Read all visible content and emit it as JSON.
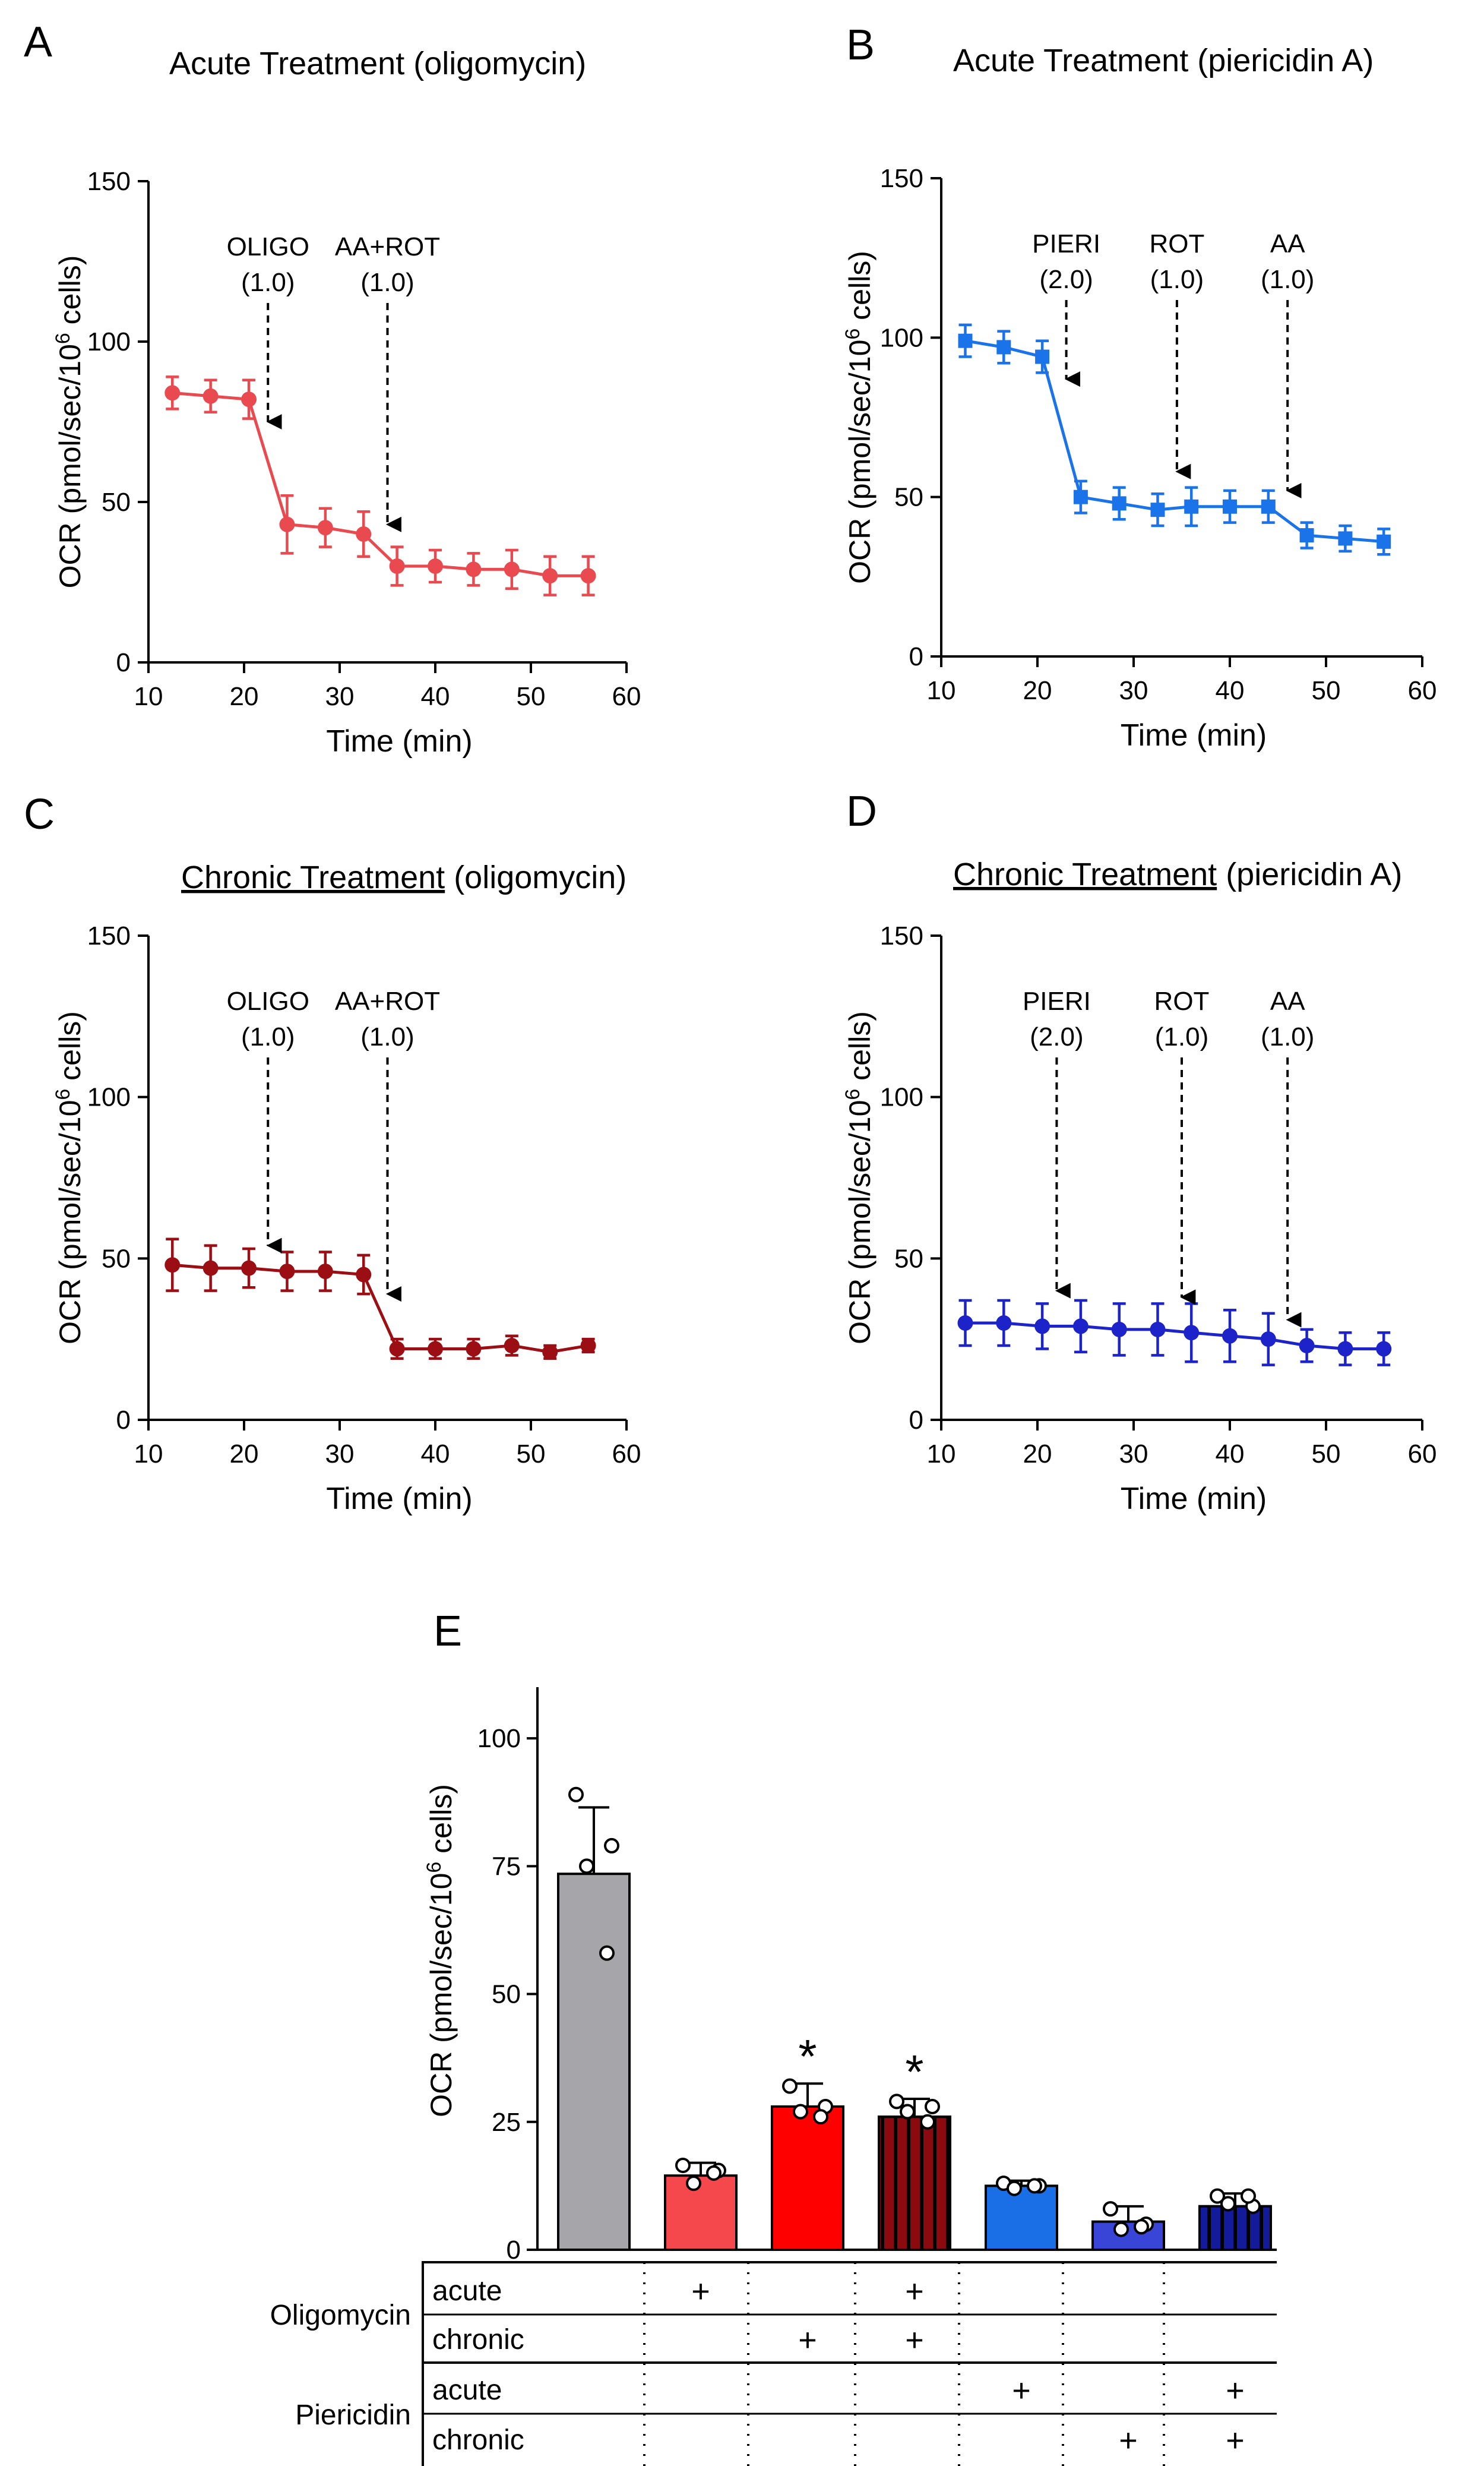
{
  "chart_data": [
    {
      "id": "A",
      "panel_letter": "A",
      "type": "line",
      "title_prefix": "Acute Treatment",
      "title_suffix": " (oligomycin)",
      "title_underlined": false,
      "xlabel": "Time (min)",
      "ylabel_main": "OCR (pmol/sec/10",
      "ylabel_sup": "6",
      "ylabel_end": " cells)",
      "xlim": [
        10,
        60
      ],
      "ylim": [
        0,
        150
      ],
      "xticks": [
        "10",
        "20",
        "30",
        "40",
        "50",
        "60"
      ],
      "yticks": [
        "0",
        "50",
        "100",
        "150"
      ],
      "marker": "circle",
      "color": "#e84a4f",
      "x": [
        12.5,
        16.5,
        20.5,
        24.5,
        28.5,
        32.5,
        36,
        40,
        44,
        48,
        52,
        56
      ],
      "y": [
        84,
        83,
        82,
        43,
        42,
        40,
        30,
        30,
        29,
        29,
        27,
        27
      ],
      "err": [
        5,
        5,
        6,
        9,
        6,
        7,
        6,
        5,
        5,
        6,
        6,
        6
      ],
      "annotations": [
        {
          "label": "OLIGO",
          "dose": "(1.0)",
          "x": 22.5,
          "y_tip": 75
        },
        {
          "label": "AA+ROT",
          "dose": "(1.0)",
          "x": 35,
          "y_tip": 43
        }
      ]
    },
    {
      "id": "B",
      "panel_letter": "B",
      "type": "line",
      "title_prefix": "Acute Treatment",
      "title_suffix": " (piericidin A)",
      "title_underlined": false,
      "xlabel": "Time (min)",
      "ylabel_main": "OCR (pmol/sec/10",
      "ylabel_sup": "6",
      "ylabel_end": " cells)",
      "xlim": [
        10,
        60
      ],
      "ylim": [
        0,
        150
      ],
      "xticks": [
        "10",
        "20",
        "30",
        "40",
        "50",
        "60"
      ],
      "yticks": [
        "0",
        "50",
        "100",
        "150"
      ],
      "marker": "square",
      "color": "#1a73e8",
      "x": [
        12.5,
        16.5,
        20.5,
        24.5,
        28.5,
        32.5,
        36,
        40,
        44,
        48,
        52,
        56
      ],
      "y": [
        99,
        97,
        94,
        50,
        48,
        46,
        47,
        47,
        47,
        38,
        37,
        36
      ],
      "err": [
        5,
        5,
        5,
        5,
        5,
        5,
        6,
        5,
        5,
        4,
        4,
        4
      ],
      "annotations": [
        {
          "label": "PIERI",
          "dose": "(2.0)",
          "x": 23,
          "y_tip": 87
        },
        {
          "label": "ROT",
          "dose": "(1.0)",
          "x": 34.5,
          "y_tip": 58
        },
        {
          "label": "AA",
          "dose": "(1.0)",
          "x": 46,
          "y_tip": 52
        }
      ]
    },
    {
      "id": "C",
      "panel_letter": "C",
      "type": "line",
      "title_prefix": "Chronic Treatment",
      "title_suffix": " (oligomycin)",
      "title_underlined": true,
      "xlabel": "Time (min)",
      "ylabel_main": "OCR (pmol/sec/10",
      "ylabel_sup": "6",
      "ylabel_end": " cells)",
      "xlim": [
        10,
        60
      ],
      "ylim": [
        0,
        150
      ],
      "xticks": [
        "10",
        "20",
        "30",
        "40",
        "50",
        "60"
      ],
      "yticks": [
        "0",
        "50",
        "100",
        "150"
      ],
      "marker": "circle",
      "color": "#9b0e14",
      "x": [
        12.5,
        16.5,
        20.5,
        24.5,
        28.5,
        32.5,
        36,
        40,
        44,
        48,
        52,
        56
      ],
      "y": [
        48,
        47,
        47,
        46,
        46,
        45,
        22,
        22,
        22,
        23,
        21,
        23
      ],
      "err": [
        8,
        7,
        6,
        6,
        6,
        6,
        3,
        3,
        3,
        3,
        2,
        2
      ],
      "annotations": [
        {
          "label": "OLIGO",
          "dose": "(1.0)",
          "x": 22.5,
          "y_tip": 54
        },
        {
          "label": "AA+ROT",
          "dose": "(1.0)",
          "x": 35,
          "y_tip": 39
        }
      ]
    },
    {
      "id": "D",
      "panel_letter": "D",
      "type": "line",
      "title_prefix": "Chronic Treatment",
      "title_suffix": " (piericidin A)",
      "title_underlined": true,
      "xlabel": "Time (min)",
      "ylabel_main": "OCR (pmol/sec/10",
      "ylabel_sup": "6",
      "ylabel_end": " cells)",
      "xlim": [
        10,
        60
      ],
      "ylim": [
        0,
        150
      ],
      "xticks": [
        "10",
        "20",
        "30",
        "40",
        "50",
        "60"
      ],
      "yticks": [
        "0",
        "50",
        "100",
        "150"
      ],
      "marker": "circle",
      "color": "#1c24c9",
      "x": [
        12.5,
        16.5,
        20.5,
        24.5,
        28.5,
        32.5,
        36,
        40,
        44,
        48,
        52,
        56
      ],
      "y": [
        30,
        30,
        29,
        29,
        28,
        28,
        27,
        26,
        25,
        23,
        22,
        22
      ],
      "err": [
        7,
        7,
        7,
        8,
        8,
        8,
        9,
        8,
        8,
        5,
        5,
        5
      ],
      "annotations": [
        {
          "label": "PIERI",
          "dose": "(2.0)",
          "x": 22,
          "y_tip": 40
        },
        {
          "label": "ROT",
          "dose": "(1.0)",
          "x": 35,
          "y_tip": 38
        },
        {
          "label": "AA",
          "dose": "(1.0)",
          "x": 46,
          "y_tip": 31
        }
      ]
    },
    {
      "id": "E",
      "panel_letter": "E",
      "type": "bar",
      "ylabel_main": "OCR (pmol/sec/10",
      "ylabel_sup": "6",
      "ylabel_end": " cells)",
      "ylim": [
        0,
        110
      ],
      "yticks": [
        "0",
        "25",
        "50",
        "75",
        "100"
      ],
      "bars": [
        {
          "value": 73.5,
          "err": 13,
          "color": "#a6a6aa",
          "striped": false,
          "star": false,
          "points": [
            89,
            79,
            75,
            58
          ]
        },
        {
          "value": 14.5,
          "err": 2.5,
          "color": "#f5484d",
          "striped": false,
          "star": false,
          "points": [
            16.5,
            15.5,
            13,
            15
          ]
        },
        {
          "value": 28,
          "err": 4.5,
          "color": "#ff0000",
          "striped": false,
          "star": true,
          "points": [
            32,
            28,
            27,
            26
          ]
        },
        {
          "value": 26,
          "err": 3.5,
          "color": "#8b0a10",
          "striped": true,
          "star": true,
          "points": [
            29,
            28,
            27,
            25
          ]
        },
        {
          "value": 12.5,
          "err": 1,
          "color": "#1a6ee6",
          "striped": false,
          "star": false,
          "points": [
            13,
            12.5,
            12,
            12.5
          ]
        },
        {
          "value": 5.5,
          "err": 3,
          "color": "#3845d6",
          "striped": false,
          "star": false,
          "points": [
            8,
            5,
            4,
            4.5
          ]
        },
        {
          "value": 8.5,
          "err": 2.5,
          "color": "#131b9a",
          "striped": true,
          "star": false,
          "points": [
            10.5,
            8.5,
            9,
            10.5
          ]
        }
      ],
      "star_label": "*",
      "table": {
        "groups": [
          {
            "name": "Oligomycin",
            "rows": [
              {
                "label": "acute",
                "marks": [
                  false,
                  true,
                  false,
                  true,
                  false,
                  false,
                  false
                ]
              },
              {
                "label": "chronic",
                "marks": [
                  false,
                  false,
                  true,
                  true,
                  false,
                  false,
                  false
                ]
              }
            ]
          },
          {
            "name": "Piericidin",
            "rows": [
              {
                "label": "acute",
                "marks": [
                  false,
                  false,
                  false,
                  false,
                  true,
                  false,
                  true
                ]
              },
              {
                "label": "chronic",
                "marks": [
                  false,
                  false,
                  false,
                  false,
                  false,
                  true,
                  true
                ]
              }
            ]
          }
        ],
        "mark_symbol": "+"
      }
    }
  ]
}
